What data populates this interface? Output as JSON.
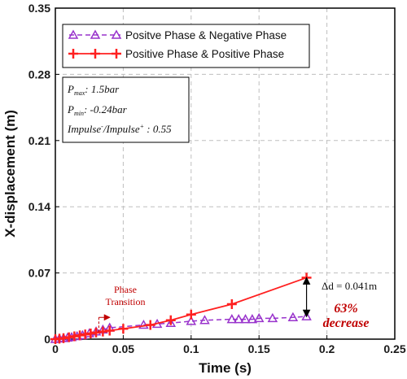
{
  "chart_data": {
    "type": "line",
    "title": "",
    "xlabel": "Time (s)",
    "ylabel": "X-displacement (m)",
    "xlim": [
      0,
      0.25
    ],
    "ylim": [
      0,
      0.35
    ],
    "x_ticks": [
      "0",
      "0.05",
      "0.1",
      "0.15",
      "0.2",
      "0.25"
    ],
    "y_ticks": [
      "0",
      "0.07",
      "0.14",
      "0.21",
      "0.28",
      "0.35"
    ],
    "grid": true,
    "legend_position": "top-left",
    "series": [
      {
        "name": "Positve Phase & Negative Phase",
        "marker": "triangle-open",
        "line_style": "dashed",
        "color": "#9933cc",
        "x": [
          0,
          0.003,
          0.006,
          0.009,
          0.012,
          0.016,
          0.02,
          0.025,
          0.03,
          0.035,
          0.04,
          0.065,
          0.075,
          0.085,
          0.1,
          0.11,
          0.13,
          0.135,
          0.14,
          0.145,
          0.15,
          0.16,
          0.175,
          0.185
        ],
        "y": [
          0,
          0.0005,
          0.001,
          0.0015,
          0.002,
          0.003,
          0.004,
          0.006,
          0.008,
          0.01,
          0.012,
          0.015,
          0.016,
          0.017,
          0.019,
          0.02,
          0.021,
          0.021,
          0.021,
          0.021,
          0.022,
          0.022,
          0.023,
          0.024
        ]
      },
      {
        "name": "Positive Phase & Positive Phase",
        "marker": "plus",
        "line_style": "solid",
        "color": "#ff2020",
        "x": [
          0,
          0.003,
          0.006,
          0.01,
          0.014,
          0.018,
          0.022,
          0.026,
          0.03,
          0.035,
          0.04,
          0.05,
          0.07,
          0.085,
          0.1,
          0.13,
          0.185
        ],
        "y": [
          0,
          0.0005,
          0.001,
          0.002,
          0.003,
          0.004,
          0.005,
          0.006,
          0.007,
          0.008,
          0.009,
          0.011,
          0.015,
          0.02,
          0.026,
          0.037,
          0.065
        ]
      }
    ],
    "info_box": {
      "pmax_var": "P",
      "pmax_sub": "max",
      "pmax_value": ": 1.5bar",
      "pmin_var": "P",
      "pmin_sub": "min",
      "pmin_value": ": -0.24bar",
      "impulse_text": "Impulse",
      "impulse_neg_sup": "-",
      "impulse_mid": "/Impulse",
      "impulse_pos_sup": "+",
      "impulse_value": " : 0.55"
    },
    "annotations": {
      "phase_transition_line1": "Phase",
      "phase_transition_line2": "Transition",
      "delta_d": "Δd = 0.041m",
      "decrease_pct": "63%",
      "decrease_word": "decrease",
      "arrow_x": 0.185,
      "arrow_y_top": 0.065,
      "arrow_y_bottom": 0.024,
      "phase_arrow_x": [
        0.032,
        0.04
      ],
      "phase_arrow_y": 0.023,
      "phase_marker_x": 0.032
    }
  },
  "colors": {
    "series1": "#9933cc",
    "series2": "#ff2020",
    "annotation_red": "#c00000",
    "grid": "#bfbfbf"
  }
}
